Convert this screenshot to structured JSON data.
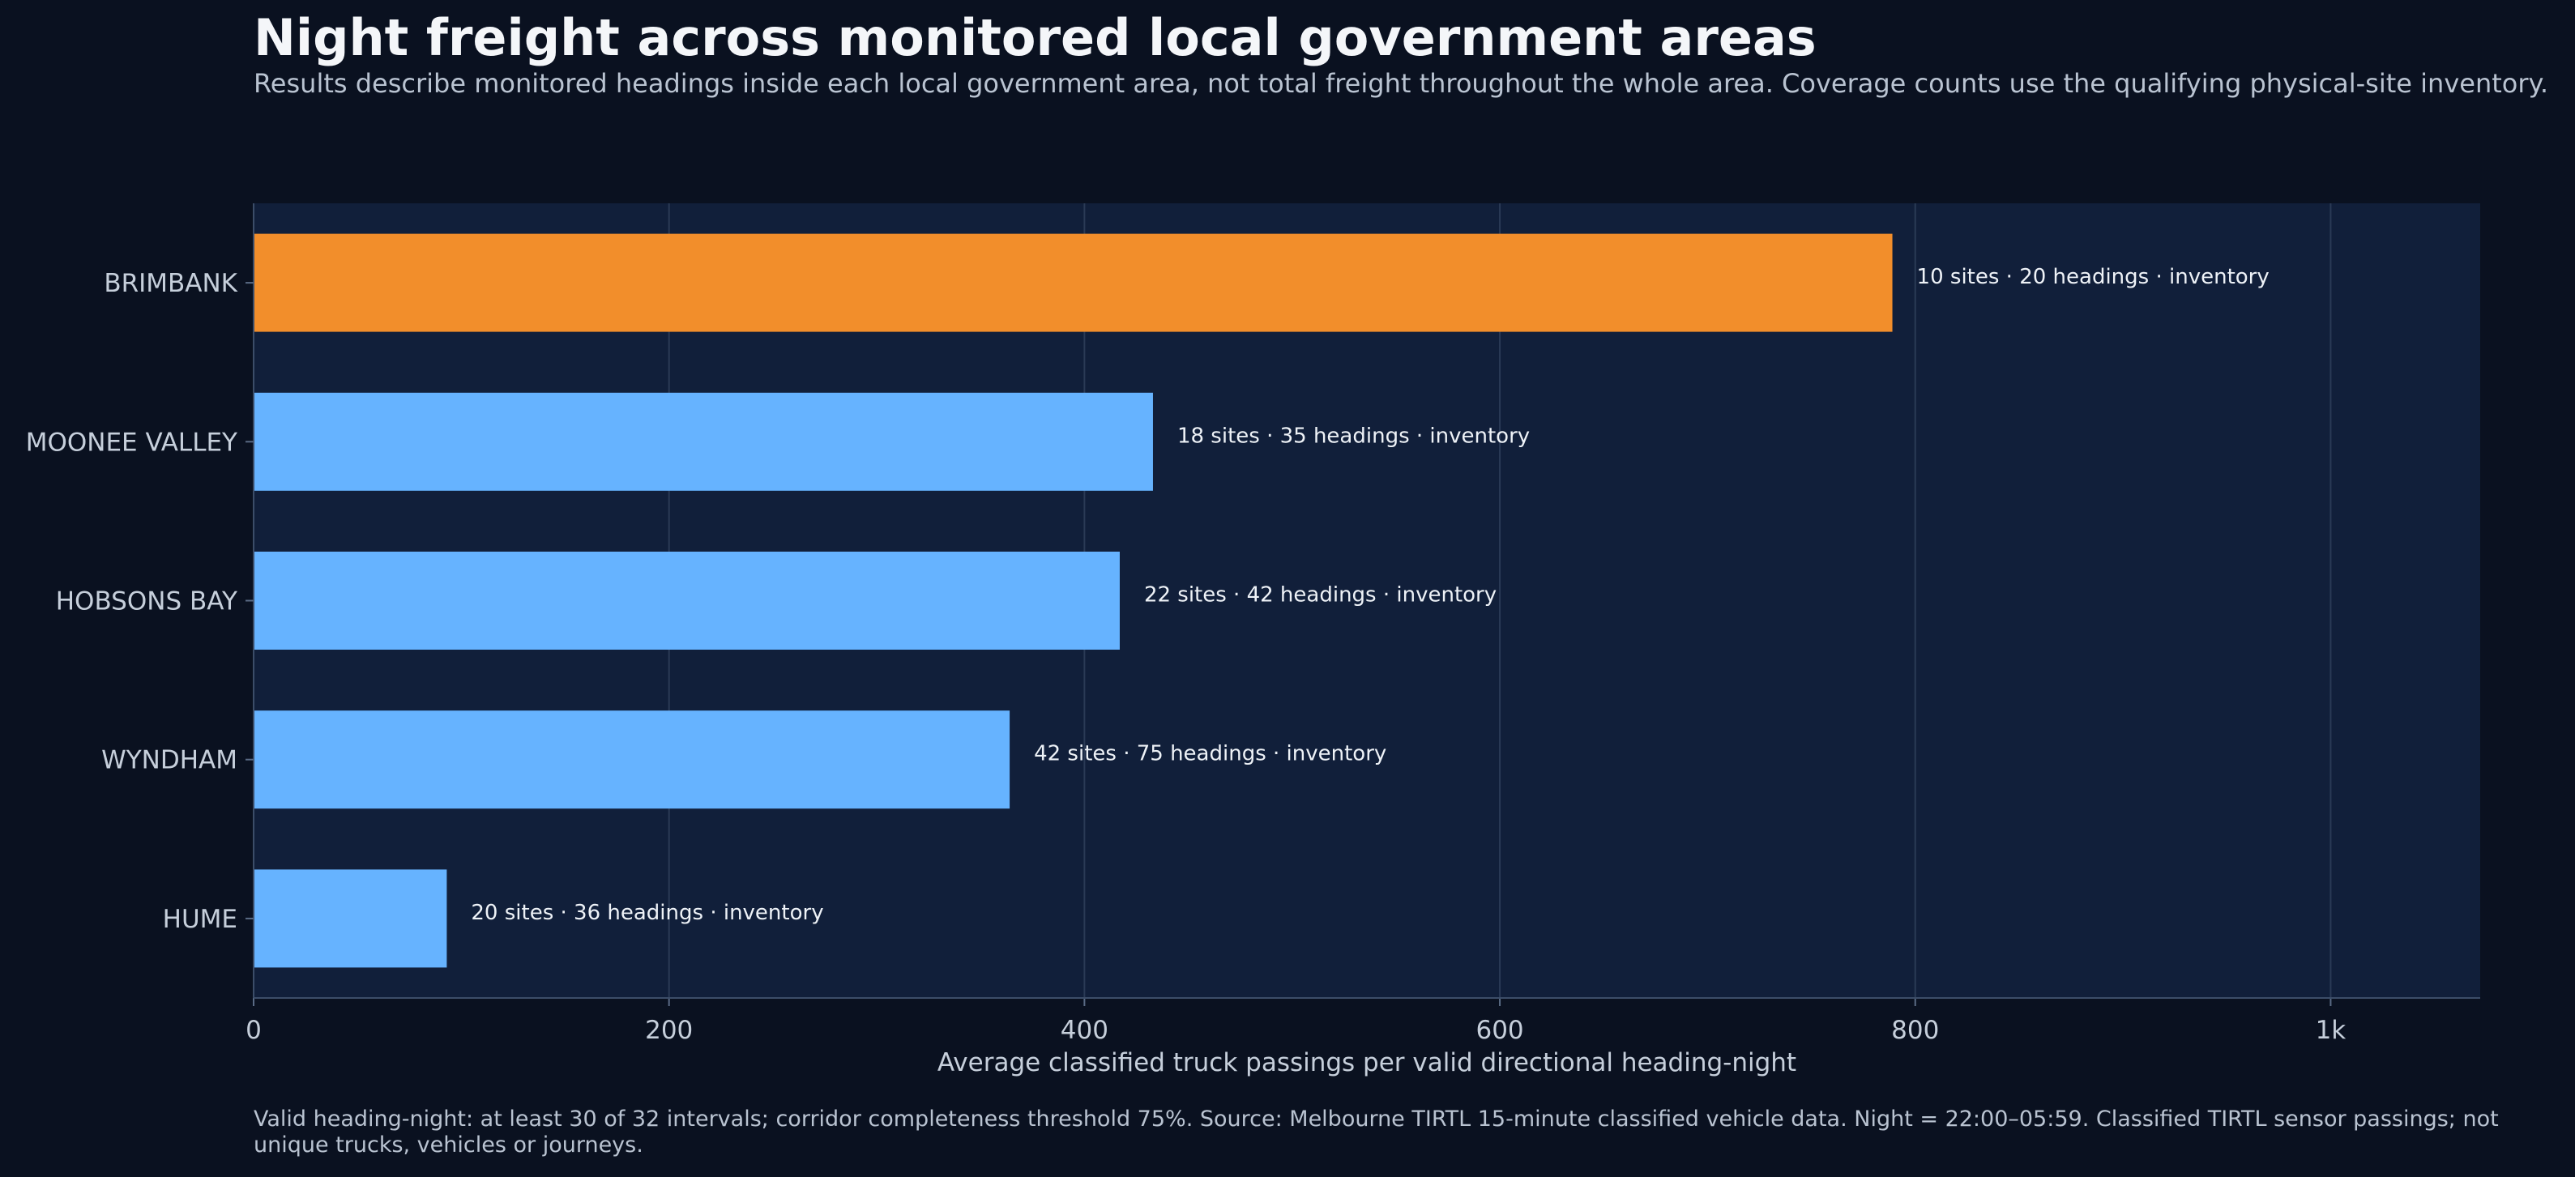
{
  "chart_data": {
    "type": "bar",
    "orientation": "horizontal",
    "title": "Night freight across monitored local government areas",
    "subtitle": "Results describe monitored headings inside each local government area, not total freight throughout the whole area. Coverage counts use the qualifying physical-site inventory.",
    "xlabel": "Average classified truck passings per valid directional heading-night",
    "ylabel": "",
    "xlim": [
      0,
      1072
    ],
    "xticks": [
      0,
      200,
      400,
      600,
      800,
      1000
    ],
    "xtick_labels": [
      "0",
      "200",
      "400",
      "600",
      "800",
      "1k"
    ],
    "grid": "vertical",
    "categories": [
      "BRIMBANK",
      "MOONEE VALLEY",
      "HOBSONS BAY",
      "WYNDHAM",
      "HUME"
    ],
    "values": [
      789,
      433,
      417,
      364,
      93
    ],
    "annotations": [
      "10 sites · 20 headings · inventory",
      "18 sites · 35 headings · inventory",
      "22 sites · 42 headings · inventory",
      "42 sites · 75 headings · inventory",
      "20 sites · 36 headings · inventory"
    ],
    "highlight_index": 0,
    "colors": {
      "highlight": "#f28e2b",
      "bar": "#66b3ff",
      "plot_bg": "#111f3a",
      "page_bg": "#0a1120",
      "grid": "#2a3a55"
    },
    "footnote": "Valid heading-night: at least 30 of 32 intervals; corridor completeness threshold 75%. Source: Melbourne TIRTL 15-minute classified vehicle data. Night = 22:00–05:59. Classified TIRTL sensor passings; not unique trucks, vehicles or journeys."
  }
}
